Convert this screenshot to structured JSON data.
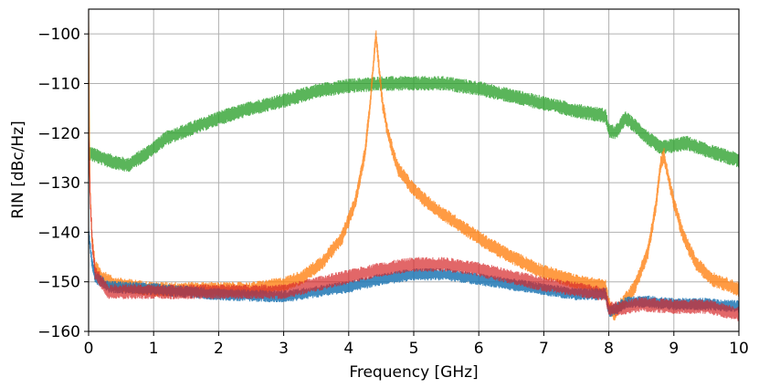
{
  "chart_data": {
    "type": "line",
    "title": "",
    "xlabel": "Frequency [GHz]",
    "ylabel": "RIN [dBc/Hz]",
    "xlim": [
      0,
      10
    ],
    "ylim": [
      -160,
      -95
    ],
    "grid": true,
    "x_ticks": [
      0,
      1,
      2,
      3,
      4,
      5,
      6,
      7,
      8,
      9,
      10
    ],
    "y_ticks": [
      -160,
      -150,
      -140,
      -130,
      -120,
      -110,
      -100
    ],
    "x_tick_labels": [
      "0",
      "1",
      "2",
      "3",
      "4",
      "5",
      "6",
      "7",
      "8",
      "9",
      "10"
    ],
    "y_tick_labels": [
      "−160",
      "−150",
      "−140",
      "−130",
      "−120",
      "−110",
      "−100"
    ],
    "series": [
      {
        "color": "#2ca02c",
        "opacity": 0.78,
        "band": 3.0,
        "points": [
          [
            0,
            -124
          ],
          [
            0.3,
            -125.5
          ],
          [
            0.6,
            -126.5
          ],
          [
            0.9,
            -124
          ],
          [
            1.2,
            -121
          ],
          [
            1.6,
            -119
          ],
          [
            2.0,
            -117
          ],
          [
            2.5,
            -115
          ],
          [
            3.0,
            -113.5
          ],
          [
            3.5,
            -111.5
          ],
          [
            4.0,
            -110.5
          ],
          [
            4.5,
            -110
          ],
          [
            5.0,
            -110
          ],
          [
            5.5,
            -110
          ],
          [
            6.0,
            -111
          ],
          [
            6.5,
            -112.5
          ],
          [
            7.0,
            -114
          ],
          [
            7.5,
            -115.5
          ],
          [
            7.95,
            -116.5
          ],
          [
            8.0,
            -119.5
          ],
          [
            8.1,
            -120
          ],
          [
            8.25,
            -117
          ],
          [
            8.4,
            -118.5
          ],
          [
            8.6,
            -121
          ],
          [
            8.8,
            -123
          ],
          [
            9.0,
            -122.5
          ],
          [
            9.2,
            -122
          ],
          [
            9.5,
            -123.5
          ],
          [
            10.0,
            -125.5
          ]
        ]
      },
      {
        "color": "#ff7f0e",
        "opacity": 0.78,
        "band": 3.0,
        "points": [
          [
            0,
            -95
          ],
          [
            0.02,
            -130
          ],
          [
            0.05,
            -141
          ],
          [
            0.1,
            -147
          ],
          [
            0.2,
            -149
          ],
          [
            0.4,
            -150.5
          ],
          [
            1.0,
            -151.5
          ],
          [
            2.0,
            -151.5
          ],
          [
            2.5,
            -151.5
          ],
          [
            3.0,
            -150.5
          ],
          [
            3.3,
            -149
          ],
          [
            3.6,
            -146
          ],
          [
            3.9,
            -141
          ],
          [
            4.1,
            -134
          ],
          [
            4.25,
            -124
          ],
          [
            4.33,
            -114
          ],
          [
            4.38,
            -106
          ],
          [
            4.42,
            -100
          ],
          [
            4.46,
            -106
          ],
          [
            4.52,
            -114
          ],
          [
            4.6,
            -120
          ],
          [
            4.75,
            -127
          ],
          [
            5.0,
            -131.5
          ],
          [
            5.3,
            -135
          ],
          [
            5.7,
            -138.5
          ],
          [
            6.1,
            -142
          ],
          [
            6.5,
            -145
          ],
          [
            7.0,
            -148
          ],
          [
            7.5,
            -150
          ],
          [
            7.95,
            -151
          ],
          [
            8.0,
            -154.5
          ],
          [
            8.08,
            -156.5
          ],
          [
            8.2,
            -154.5
          ],
          [
            8.4,
            -151
          ],
          [
            8.6,
            -144
          ],
          [
            8.72,
            -135
          ],
          [
            8.8,
            -126
          ],
          [
            8.85,
            -124.5
          ],
          [
            8.9,
            -128
          ],
          [
            9.0,
            -134
          ],
          [
            9.15,
            -141
          ],
          [
            9.35,
            -146.5
          ],
          [
            9.6,
            -149.5
          ],
          [
            10.0,
            -151.5
          ]
        ]
      },
      {
        "color": "#1f77b4",
        "opacity": 0.85,
        "band": 2.5,
        "points": [
          [
            0,
            -140
          ],
          [
            0.05,
            -146
          ],
          [
            0.1,
            -149
          ],
          [
            0.3,
            -151
          ],
          [
            1.0,
            -151.5
          ],
          [
            2.0,
            -152.5
          ],
          [
            3.0,
            -153
          ],
          [
            3.5,
            -152
          ],
          [
            4.0,
            -151
          ],
          [
            4.5,
            -149.5
          ],
          [
            5.0,
            -148.5
          ],
          [
            5.5,
            -148.5
          ],
          [
            6.0,
            -149.5
          ],
          [
            6.5,
            -150.5
          ],
          [
            7.0,
            -151.5
          ],
          [
            7.5,
            -152.5
          ],
          [
            7.95,
            -152.5
          ],
          [
            8.0,
            -156
          ],
          [
            8.1,
            -155.5
          ],
          [
            8.3,
            -154
          ],
          [
            8.6,
            -154
          ],
          [
            9.0,
            -154.5
          ],
          [
            9.5,
            -154.5
          ],
          [
            10.0,
            -155
          ]
        ]
      },
      {
        "color": "#d62728",
        "opacity": 0.7,
        "band": 3.0,
        "points": [
          [
            0,
            -120
          ],
          [
            0.03,
            -135
          ],
          [
            0.06,
            -143
          ],
          [
            0.1,
            -148
          ],
          [
            0.3,
            -152
          ],
          [
            1.0,
            -152
          ],
          [
            2.0,
            -152
          ],
          [
            3.0,
            -152
          ],
          [
            3.5,
            -150.5
          ],
          [
            4.0,
            -149
          ],
          [
            4.5,
            -147.5
          ],
          [
            5.0,
            -146.5
          ],
          [
            5.5,
            -146.5
          ],
          [
            6.0,
            -147.5
          ],
          [
            6.5,
            -149
          ],
          [
            7.0,
            -150.5
          ],
          [
            7.5,
            -151.5
          ],
          [
            7.95,
            -152.5
          ],
          [
            8.0,
            -155.5
          ],
          [
            8.1,
            -155.5
          ],
          [
            8.5,
            -154.5
          ],
          [
            9.0,
            -155
          ],
          [
            9.5,
            -155
          ],
          [
            10.0,
            -156.5
          ]
        ]
      }
    ]
  }
}
